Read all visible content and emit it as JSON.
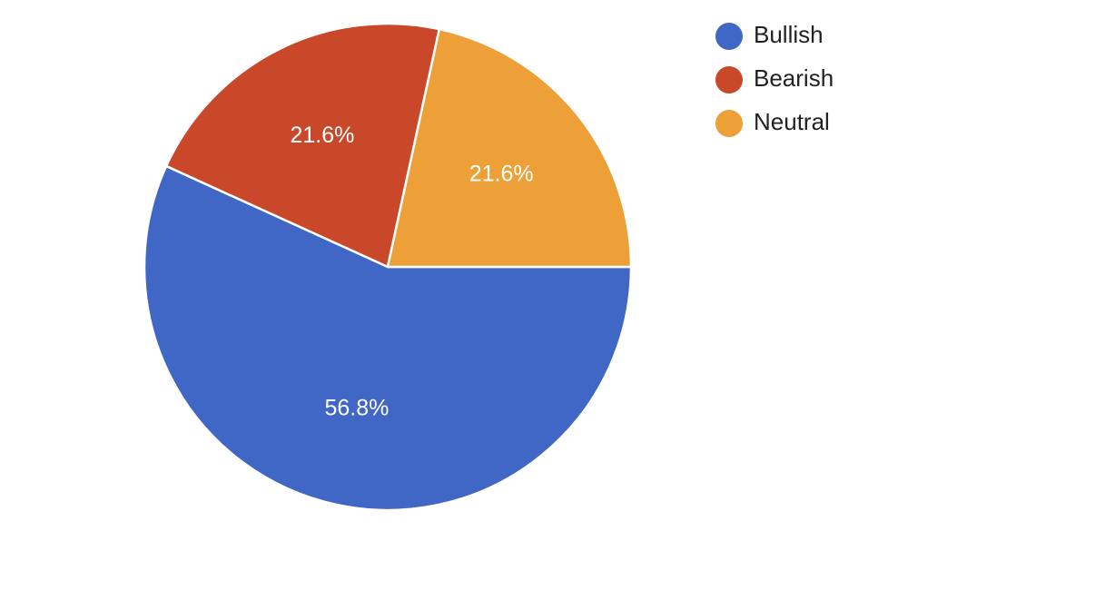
{
  "chart_data": {
    "type": "pie",
    "categories": [
      "Bullish",
      "Bearish",
      "Neutral"
    ],
    "values": [
      56.8,
      21.6,
      21.6
    ],
    "labels": [
      "56.8%",
      "21.6%",
      "21.6%"
    ],
    "colors": [
      "#4066c6",
      "#c94829",
      "#eea038"
    ],
    "legend": {
      "position": "right",
      "items": [
        "Bullish",
        "Bearish",
        "Neutral"
      ]
    }
  }
}
